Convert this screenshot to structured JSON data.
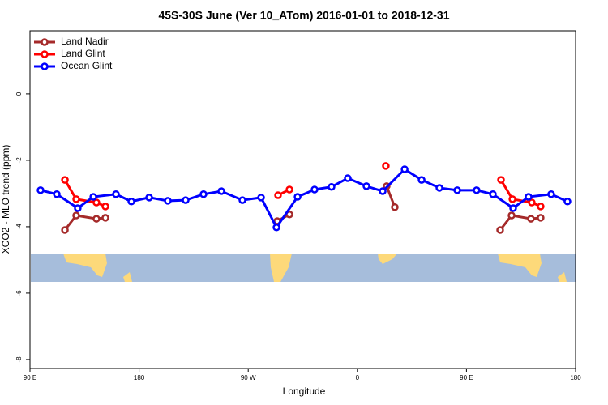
{
  "chart_data": {
    "type": "line",
    "title": "45S-30S June (Ver 10_ATom)   2016-01-01 to 2018-12-31",
    "xlabel": "Longitude",
    "ylabel": "XCO2 - MLO trend (ppm)",
    "xlim": [
      90,
      540
    ],
    "ylim": [
      -8.27,
      1.9
    ],
    "xticks": [
      {
        "value": 90,
        "label": "90 E"
      },
      180,
      {
        "value": 270,
        "label": "90 W"
      },
      {
        "value": 360,
        "label": "0"
      },
      {
        "value": 450,
        "label": "90 E"
      },
      {
        "value": 540,
        "label": "180"
      }
    ],
    "yticks": [
      -8,
      -6,
      -4,
      -2,
      0
    ],
    "legend": "top-left",
    "series": [
      {
        "name": "Land Nadir",
        "color": "#a52a2a",
        "x": [
          118.8,
          128.1,
          144.8,
          152.2,
          null,
          293.9,
          304.0,
          null,
          384.2,
          390.9,
          null,
          477.8,
          487.2,
          503.2,
          511.2
        ],
        "values": [
          -4.1,
          -3.66,
          -3.76,
          -3.73,
          null,
          -3.83,
          -3.63,
          null,
          -2.78,
          -3.41,
          null,
          -4.1,
          -3.66,
          -3.76,
          -3.73
        ]
      },
      {
        "name": "Land Glint",
        "color": "#ff0000",
        "x": [
          118.8,
          128.1,
          144.8,
          152.2,
          null,
          294.6,
          304.0,
          null,
          383.5,
          null,
          478.5,
          487.9,
          503.9,
          511.2
        ],
        "values": [
          -2.59,
          -3.17,
          -3.27,
          -3.39,
          null,
          -3.05,
          -2.88,
          null,
          -2.17,
          null,
          -2.59,
          -3.17,
          -3.27,
          -3.39
        ]
      },
      {
        "name": "Ocean Glint",
        "color": "#0000ff",
        "x": [
          98.7,
          112.1,
          129.4,
          142.2,
          160.9,
          173.6,
          188.3,
          203.7,
          218.4,
          233.1,
          247.8,
          265.2,
          280.6,
          293.3,
          310.7,
          324.7,
          338.7,
          352.1,
          367.5,
          380.9,
          399.0,
          413.0,
          427.7,
          442.4,
          458.4,
          471.8,
          488.5,
          501.2,
          519.9,
          533.3
        ],
        "values": [
          -2.9,
          -3.02,
          -3.44,
          -3.1,
          -3.02,
          -3.24,
          -3.12,
          -3.22,
          -3.2,
          -3.02,
          -2.93,
          -3.2,
          -3.12,
          -4.02,
          -3.1,
          -2.88,
          -2.8,
          -2.54,
          -2.78,
          -2.93,
          -2.27,
          -2.59,
          -2.83,
          -2.9,
          -2.9,
          -3.02,
          -3.44,
          -3.1,
          -3.02,
          -3.24
        ]
      }
    ]
  }
}
